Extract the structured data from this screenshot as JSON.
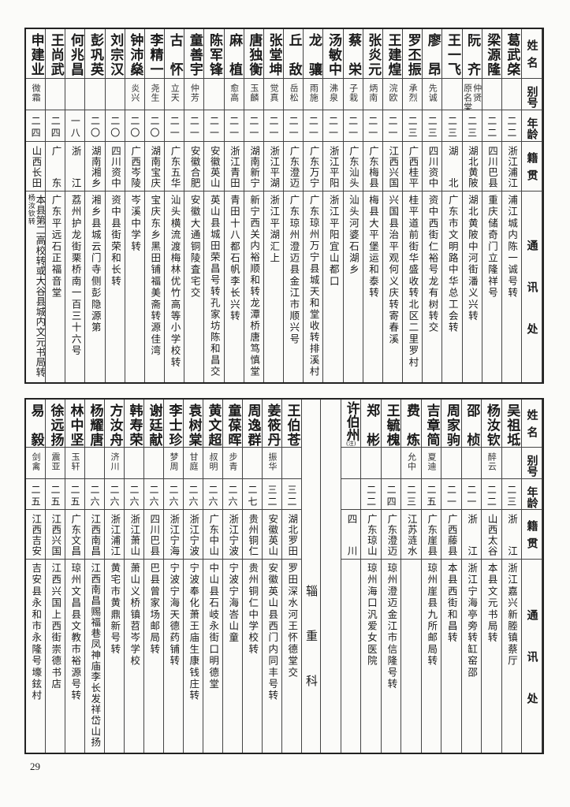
{
  "header": {
    "name": "姓名",
    "alias": "别号",
    "age": "年龄",
    "native": "籍贯",
    "address": "通讯处"
  },
  "top": {
    "rows": [
      {
        "name": "葛武棨",
        "alias": "",
        "age": "二二",
        "native": "浙江浦江",
        "address": "浦江城内陈一诚号转"
      },
      {
        "name": "梁源隆",
        "alias": "",
        "age": "二二",
        "native": "四川巴县",
        "address": "重庆储奇门立隆祥号"
      },
      {
        "name": "阮齐",
        "alias": "仲贤\n原名棠",
        "age": "二三",
        "native": "湖北黄陂",
        "address": "湖北黄陂中河街潘义兴转"
      },
      {
        "name": "王一飞",
        "alias": "",
        "age": "二三",
        "native": "湖北",
        "address": "广东市文明路中华总工会转"
      },
      {
        "name": "廖昂",
        "alias": "先诚",
        "age": "二三",
        "native": "四川资中",
        "address": "资中西街仁裕号龙有树转交"
      },
      {
        "name": "罗丕振",
        "alias": "承烈",
        "age": "二三",
        "native": "广西桂平",
        "address": "桂平道前街华盛收转北区二里罗村"
      },
      {
        "name": "王建煌",
        "alias": "浣欧",
        "age": "二一",
        "native": "江西兴国",
        "address": "兴国县治平观何义庆转寄春溪"
      },
      {
        "name": "张炎元",
        "alias": "炳南",
        "age": "二一",
        "native": "广东梅县",
        "address": "梅县大平堡运和泰转"
      },
      {
        "name": "蔡栄",
        "alias": "子栽",
        "age": "二一",
        "native": "广东汕头",
        "address": "汕头河婆石湖乡"
      },
      {
        "name": "汤敏中",
        "alias": "沸泉",
        "age": "二一",
        "native": "浙江平阳",
        "address": "浙江平阳宜山都口"
      },
      {
        "name": "龙骧",
        "alias": "雨施",
        "age": "二一",
        "native": "广东万宁",
        "address": "广东琼州万宁县城天和堂收转排溪村"
      },
      {
        "name": "丘敌",
        "alias": "岳松",
        "age": "二一",
        "native": "广东澄迈",
        "address": "广东琼州澄迈县金江市顺兴号"
      },
      {
        "name": "张堂坤",
        "alias": "觉真",
        "age": "二一",
        "native": "浙江平湖",
        "address": "浙江平湖汇上"
      },
      {
        "name": "唐独衡",
        "alias": "玉麟",
        "age": "二一",
        "native": "湖南新宁",
        "address": "新宁西关内裕顺和转龙潭桥唐笃慎堂"
      },
      {
        "name": "麻植",
        "alias": "愈高",
        "age": "二一",
        "native": "浙江青田",
        "address": "青田十八都石帆李长兴转"
      },
      {
        "name": "陈军锋",
        "alias": "",
        "age": "二一",
        "native": "安徽英山",
        "address": "英山县城田荣昌号转孔家坊陈和昌交"
      },
      {
        "name": "童善宇",
        "alias": "仲芳",
        "age": "二一",
        "native": "安徽合肥",
        "address": "安徽大通铜陵査宅交"
      },
      {
        "name": "古怀",
        "alias": "立天",
        "age": "二一",
        "native": "广东五华",
        "address": "汕头横流渡梅林优竹高等小学校转"
      },
      {
        "name": "李精一",
        "alias": "尧生",
        "age": "二〇",
        "native": "湖南宝庆",
        "address": "宝庆东乡黑田铺福美斋转源佳湾"
      },
      {
        "name": "钟沛燊",
        "alias": "炎兴",
        "age": "二〇",
        "native": "广西岑陵",
        "address": "岑溪中学转"
      },
      {
        "name": "刘宗汉",
        "alias": "",
        "age": "二〇",
        "native": "四川资中",
        "address": "资中县街荣和长转"
      },
      {
        "name": "彭巩英",
        "alias": "",
        "age": "二〇",
        "native": "湖南湘乡",
        "address": "湘乡县城云门寺侧彭隐源第"
      },
      {
        "name": "何兆昌",
        "alias": "",
        "age": "一八",
        "native": "浙江",
        "address": "荔州护龙街栗桥南一百三十六号"
      },
      {
        "name": "王尚武",
        "alias": "",
        "age": "二四",
        "native": "广东",
        "address": "广东平远石正福音堂"
      },
      {
        "name": "申建业",
        "alias": "微霜",
        "age": "二四",
        "native": "山西长田",
        "address": "本县第二高校转或大谷县城内文元书局转",
        "address_note": "杨汝钦转"
      }
    ]
  },
  "bottom": {
    "rows_right": [
      {
        "name": "吴祖坻",
        "alias": "",
        "age": "二三",
        "native": "浙江",
        "address": "浙江嘉兴新塍镇蔡厅"
      },
      {
        "name": "杨汝钦",
        "alias": "醉云",
        "age": "二二",
        "native": "山西太谷",
        "address": "本县文元书局转"
      },
      {
        "name": "邵桢",
        "alias": "",
        "age": "二一",
        "native": "浙江",
        "address": "浙江宁海亭旁转缸窑邵"
      },
      {
        "name": "周家驹",
        "alias": "",
        "age": "二一",
        "native": "广西藤县",
        "address": "本县西街和昌转"
      },
      {
        "name": "吉章简",
        "alias": "夏迪",
        "age": "二五",
        "native": "广东崖县",
        "address": "琼州崖县九所邮局转"
      },
      {
        "name": "费炼",
        "alias": "允中",
        "age": "二三",
        "native": "江苏涟水",
        "address": ""
      },
      {
        "name": "王毓槐",
        "alias": "",
        "age": "二四",
        "native": "广东澄迈",
        "address": "琼州澄迈金江市信隆号转"
      },
      {
        "name": "郑彬",
        "alias": "",
        "age": "二二",
        "native": "广东琼山",
        "address": "琼州海口汎爱女医院"
      },
      {
        "name": "许伯州",
        "name_note": "(注)",
        "alias": "",
        "age": "",
        "native": "四川",
        "address": ""
      }
    ],
    "section_label": "辎重科",
    "rows_left": [
      {
        "name": "王伯苍",
        "alias": "",
        "age": "三二",
        "native": "湖北罗田",
        "address": "罗田深水河王怀德堂交"
      },
      {
        "name": "姜筱丹",
        "alias": "振华",
        "age": "三二",
        "native": "安徽英山",
        "address": "安徽英山县西门内同丰号转"
      },
      {
        "name": "周逸群",
        "alias": "",
        "age": "二七",
        "native": "贵州铜仁",
        "address": "贵州铜仁中学校转"
      },
      {
        "name": "童葆晖",
        "alias": "步青",
        "age": "二六",
        "native": "浙江宁波",
        "address": "宁波宁海峇山童"
      },
      {
        "name": "黄文超",
        "alias": "叔明",
        "age": "二六",
        "native": "广东中山",
        "address": "中山县石岐永街口明德堂"
      },
      {
        "name": "袁树棠",
        "alias": "甘庭",
        "age": "二六",
        "native": "浙江宁波",
        "address": "宁波奉化萧王庙生康钱庄转"
      },
      {
        "name": "李士珍",
        "alias": "梦周",
        "age": "二六",
        "native": "浙江宁海",
        "address": "宁波宁海天德药铺转"
      },
      {
        "name": "谢廷献",
        "alias": "",
        "age": "二六",
        "native": "四川巴县",
        "address": "巴县曾家场邮局转"
      },
      {
        "name": "韩寿荣",
        "alias": "",
        "age": "二六",
        "native": "浙江萧山",
        "address": "萧山义桥镇苕岑学校"
      },
      {
        "name": "方汝舟",
        "alias": "济川",
        "age": "二六",
        "native": "浙江浦江",
        "address": "黄宅市黄鼎新号转"
      },
      {
        "name": "杨耀唐",
        "alias": "",
        "age": "二六",
        "native": "江西南昌",
        "address": "江西南昌赐福巷凤神庙李长发祥岱山扬"
      },
      {
        "name": "林中坚",
        "alias": "玉轩",
        "age": "二五",
        "native": "广东文昌",
        "address": "琼州文昌县文教市裕源号转"
      },
      {
        "name": "徐远扬",
        "alias": "震亚",
        "age": "二五",
        "native": "江西兴国",
        "address": "江西兴国上西街崇德书店"
      },
      {
        "name": "易毅",
        "alias": "剑禽",
        "age": "二五",
        "native": "江西吉安",
        "address": "吉安县永和市永隆号壕鉉村"
      }
    ]
  },
  "page_number": "29"
}
